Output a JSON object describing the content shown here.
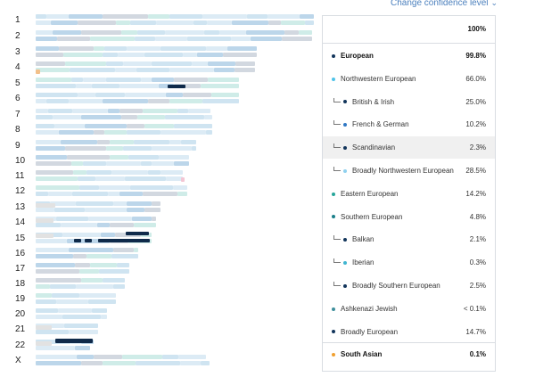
{
  "header": {
    "confidence_link": "Change confidence level"
  },
  "chromosomes": [
    "1",
    "2",
    "3",
    "4",
    "5",
    "6",
    "7",
    "8",
    "9",
    "10",
    "11",
    "12",
    "13",
    "14",
    "15",
    "16",
    "17",
    "18",
    "19",
    "20",
    "21",
    "22",
    "X"
  ],
  "panel": {
    "total_pct": "100%",
    "rows": [
      {
        "name": "European",
        "pct": "99.8%",
        "color": "#12355b",
        "level": 0,
        "bold": true
      },
      {
        "name": "Northwestern European",
        "pct": "66.0%",
        "color": "#4fc3e8",
        "level": 0,
        "bold": false
      },
      {
        "name": "British & Irish",
        "pct": "25.0%",
        "color": "#12355b",
        "level": 1,
        "bold": false
      },
      {
        "name": "French & German",
        "pct": "10.2%",
        "color": "#2f78c4",
        "level": 1,
        "bold": false
      },
      {
        "name": "Scandinavian",
        "pct": "2.3%",
        "color": "#12355b",
        "level": 1,
        "bold": false,
        "highlight": true
      },
      {
        "name": "Broadly Northwestern European",
        "pct": "28.5%",
        "color": "#8fd1ef",
        "level": 1,
        "bold": false
      },
      {
        "name": "Eastern European",
        "pct": "14.2%",
        "color": "#26a69a",
        "level": 0,
        "bold": false
      },
      {
        "name": "Southern European",
        "pct": "4.8%",
        "color": "#1a7f8a",
        "level": 0,
        "bold": false
      },
      {
        "name": "Balkan",
        "pct": "2.1%",
        "color": "#12355b",
        "level": 1,
        "bold": false
      },
      {
        "name": "Iberian",
        "pct": "0.3%",
        "color": "#3fb5d0",
        "level": 1,
        "bold": false
      },
      {
        "name": "Broadly Southern European",
        "pct": "2.5%",
        "color": "#12355b",
        "level": 1,
        "bold": false
      },
      {
        "name": "Ashkenazi Jewish",
        "pct": "< 0.1%",
        "color": "#3f8f9c",
        "level": 0,
        "bold": false
      },
      {
        "name": "Broadly European",
        "pct": "14.7%",
        "color": "#12355b",
        "level": 0,
        "bold": false
      },
      {
        "name": "South Asian",
        "pct": "0.1%",
        "color": "#f0a030",
        "level": 0,
        "bold": true
      }
    ]
  }
}
